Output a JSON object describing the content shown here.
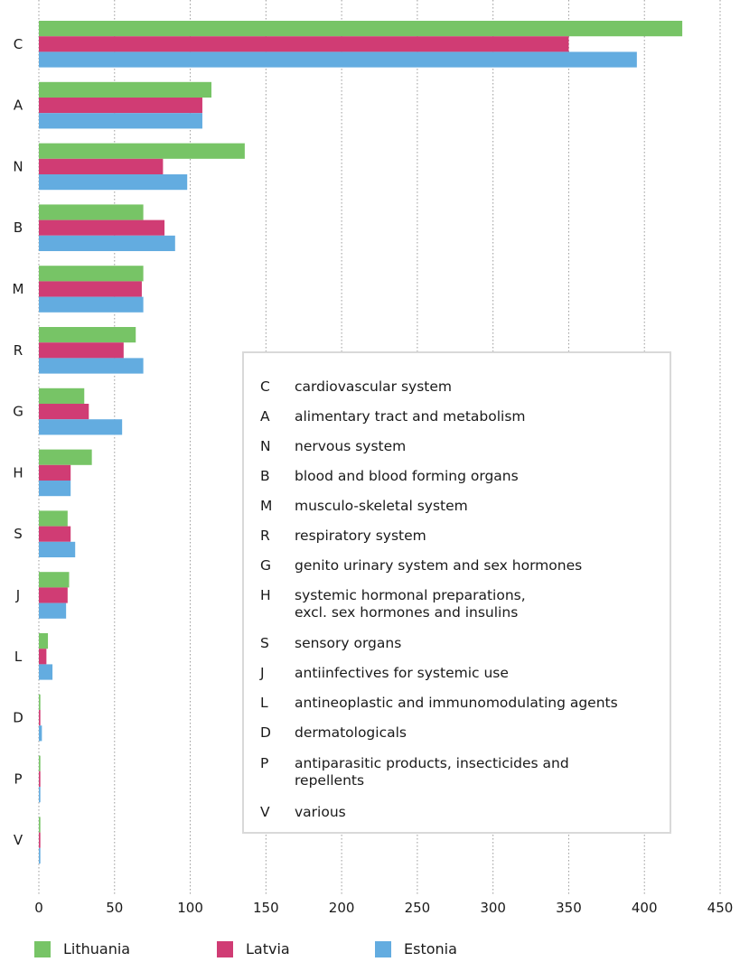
{
  "chart_data": {
    "type": "bar",
    "orientation": "horizontal",
    "categories": [
      "C",
      "A",
      "N",
      "B",
      "M",
      "R",
      "G",
      "H",
      "S",
      "J",
      "L",
      "D",
      "P",
      "V"
    ],
    "series": [
      {
        "name": "Lithuania",
        "color": "#77c466",
        "values": [
          425,
          114,
          136,
          69,
          69,
          64,
          30,
          35,
          19,
          20,
          6,
          1,
          1,
          1
        ]
      },
      {
        "name": "Latvia",
        "color": "#d03c74",
        "values": [
          350,
          108,
          82,
          83,
          68,
          56,
          33,
          21,
          21,
          19,
          5,
          1,
          1,
          1
        ]
      },
      {
        "name": "Estonia",
        "color": "#63ace0",
        "values": [
          395,
          108,
          98,
          90,
          69,
          69,
          55,
          21,
          24,
          18,
          9,
          2,
          1,
          1
        ]
      }
    ],
    "xlim": [
      0,
      450
    ],
    "xticks": [
      0,
      50,
      100,
      150,
      200,
      250,
      300,
      350,
      400,
      450
    ],
    "grid": "vertical dotted",
    "title": "",
    "xlabel": "",
    "ylabel": "",
    "legend_placement": "bottom"
  },
  "code_legend": [
    {
      "code": "C",
      "desc": "cardiovascular system"
    },
    {
      "code": "A",
      "desc": "alimentary tract and metabolism"
    },
    {
      "code": "N",
      "desc": "nervous system"
    },
    {
      "code": "B",
      "desc": "blood and blood forming organs"
    },
    {
      "code": "M",
      "desc": "musculo-skeletal system"
    },
    {
      "code": "R",
      "desc": "respiratory system"
    },
    {
      "code": "G",
      "desc": "genito urinary system and sex hormones"
    },
    {
      "code": "H",
      "desc": "systemic hormonal preparations,\nexcl. sex hormones and insulins"
    },
    {
      "code": "S",
      "desc": "sensory organs"
    },
    {
      "code": "J",
      "desc": "antiinfectives for systemic use"
    },
    {
      "code": "L",
      "desc": "antineoplastic and immunomodulating agents"
    },
    {
      "code": "D",
      "desc": "dermatologicals"
    },
    {
      "code": "P",
      "desc": "antiparasitic products, insecticides and\nrepellents"
    },
    {
      "code": "V",
      "desc": "various"
    }
  ]
}
